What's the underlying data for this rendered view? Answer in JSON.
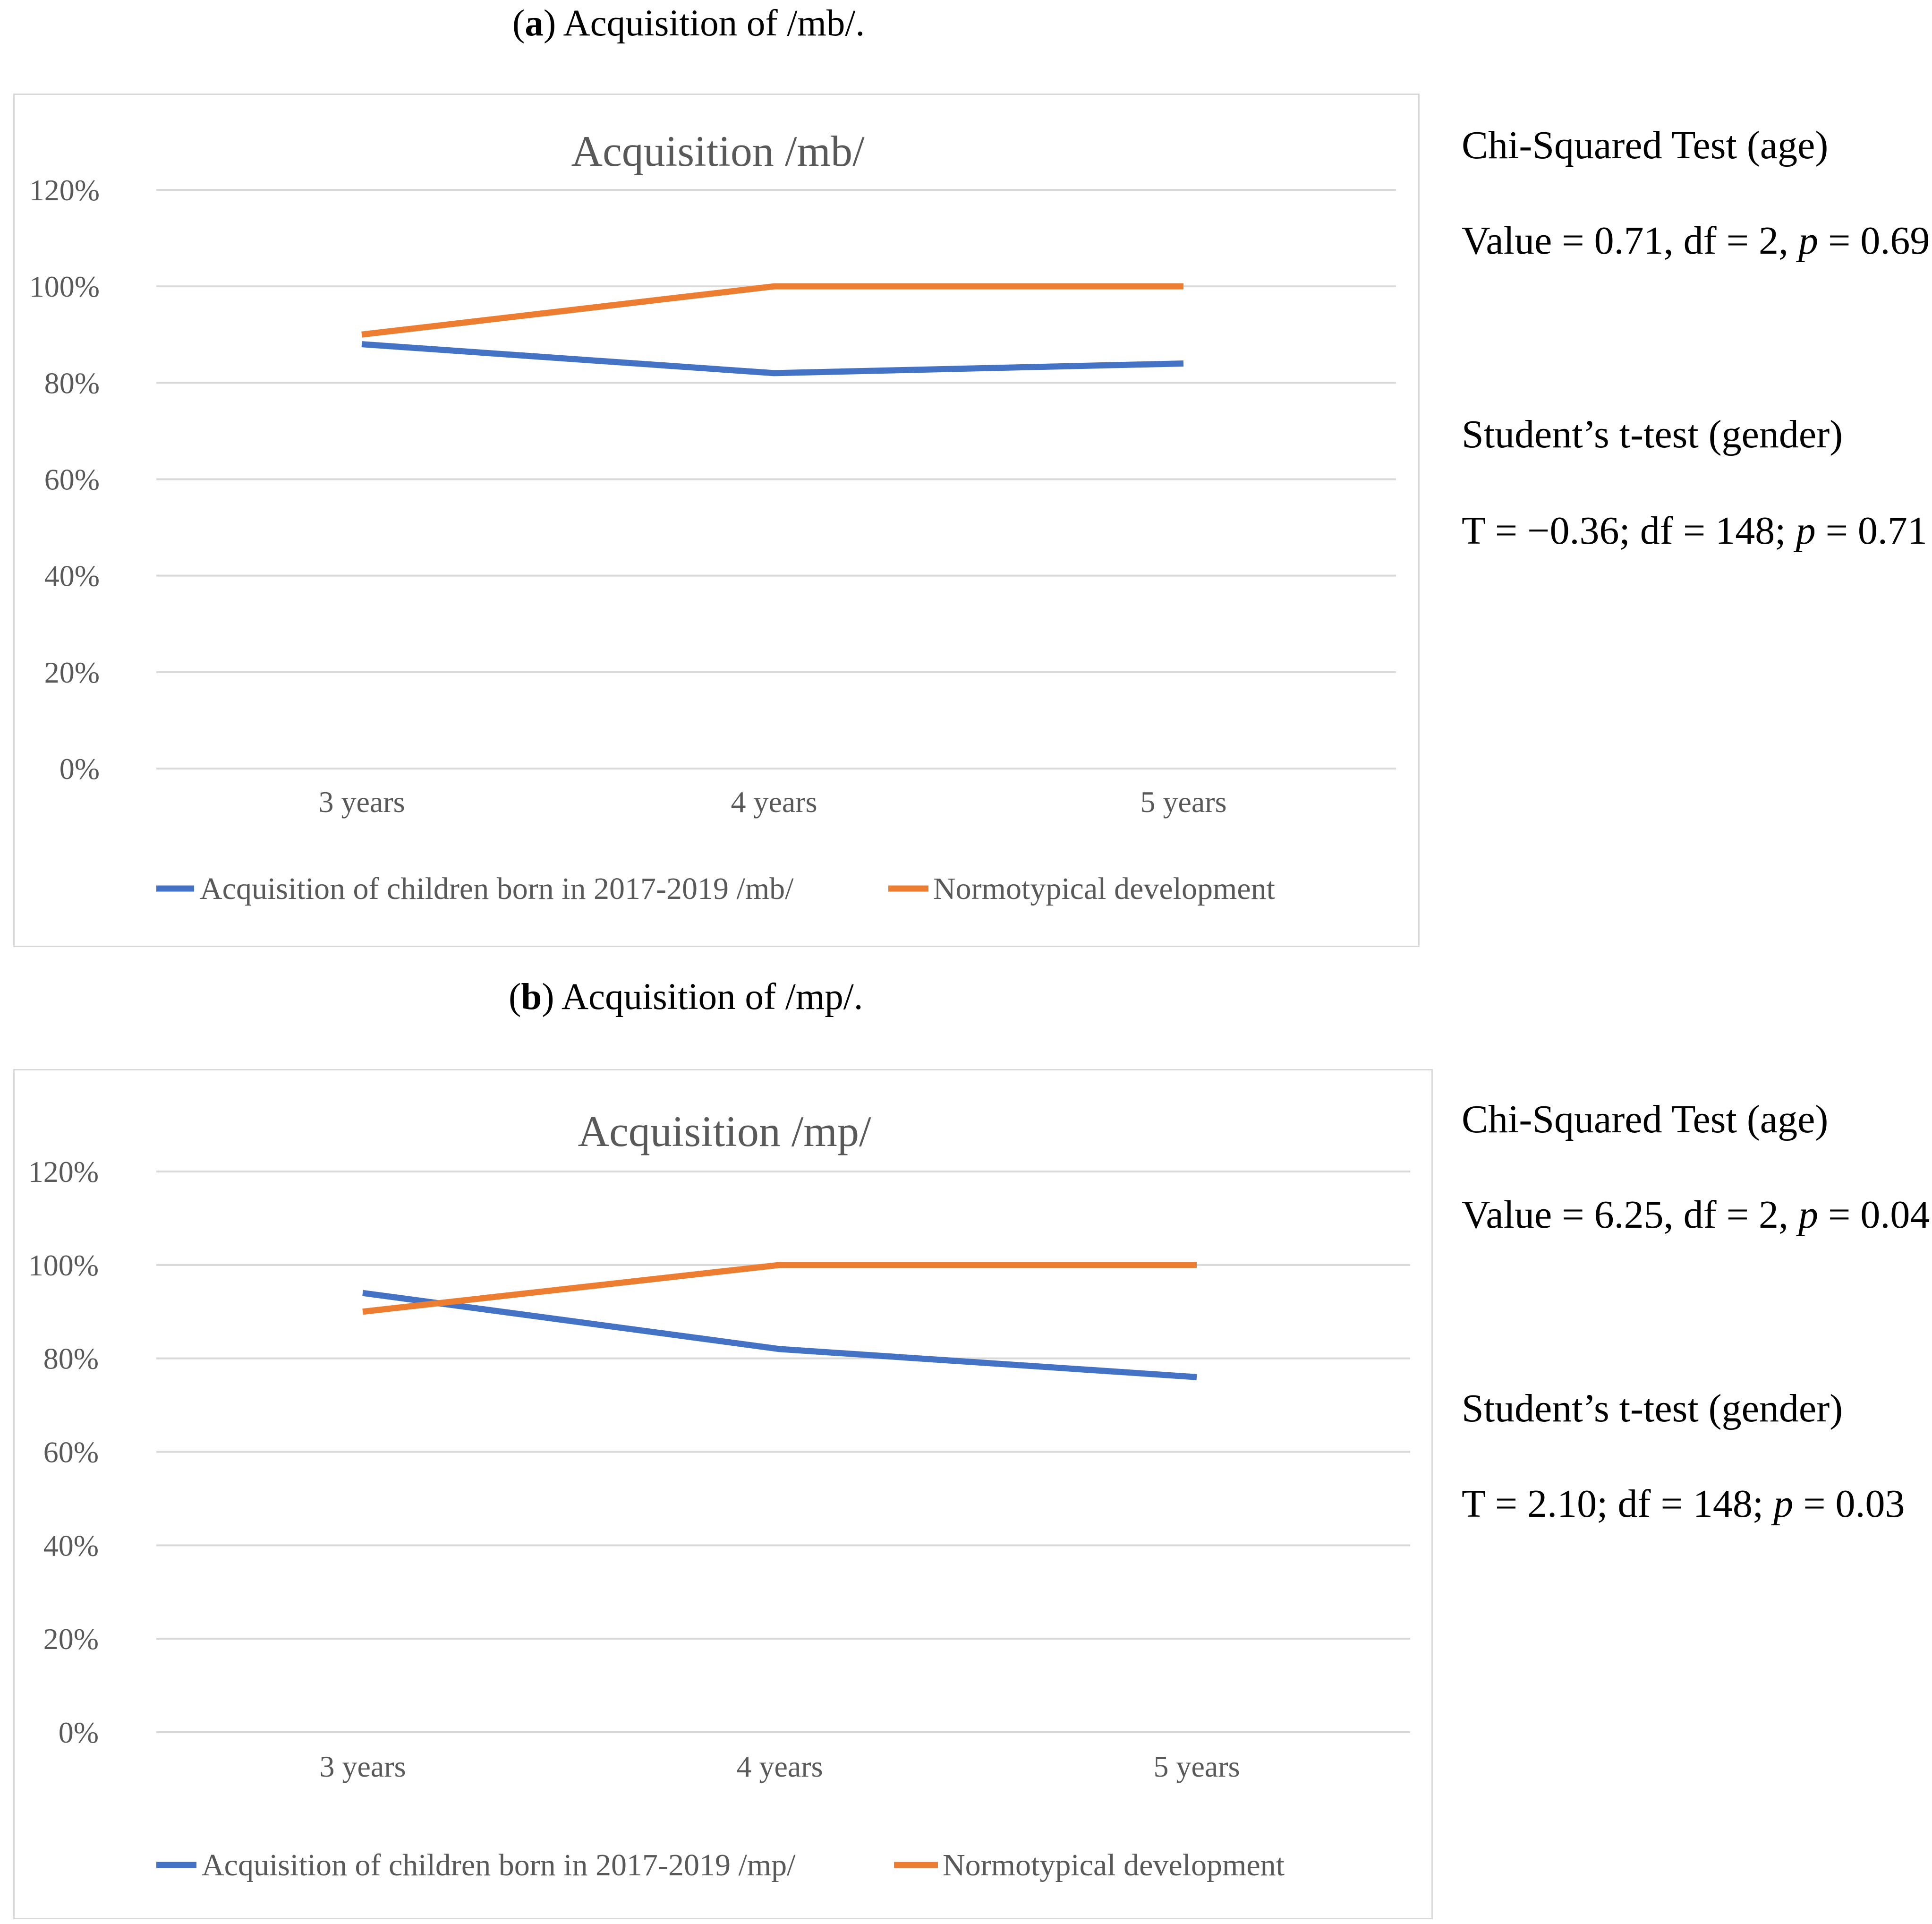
{
  "panels": [
    {
      "caption_letter": "a",
      "caption_text": ") Acquisition of /mb/.",
      "stats": {
        "chi_title": "Chi-Squared Test (age)",
        "chi_value_pre": "Value = 0.71, df = 2, ",
        "chi_p_label": "p",
        "chi_p_value": " = 0.69",
        "t_title": "Student’s t-test (gender)",
        "t_value_pre": "T = −0.36; df = 148; ",
        "t_p_label": "p",
        "t_p_value": " = 0.71"
      }
    },
    {
      "caption_letter": "b",
      "caption_text": ") Acquisition of /mp/.",
      "stats": {
        "chi_title": "Chi-Squared Test (age)",
        "chi_value_pre": "Value = 6.25, df = 2, ",
        "chi_p_label": "p",
        "chi_p_value": " = 0.04",
        "t_title": "Student’s t-test (gender)",
        "t_value_pre": "T = 2.10; df = 148; ",
        "t_p_label": "p",
        "t_p_value": " = 0.03"
      }
    }
  ],
  "chart_data": [
    {
      "type": "line",
      "title": "Acquisition /mb/",
      "categories": [
        "3 years",
        "4 years",
        "5 years"
      ],
      "yticks": [
        "0%",
        "20%",
        "40%",
        "60%",
        "80%",
        "100%",
        "120%"
      ],
      "ylim": [
        0,
        120
      ],
      "grid": true,
      "legend_position": "bottom",
      "series": [
        {
          "name": "Acquisition of children born in 2017-2019 /mb/",
          "values": [
            88,
            82,
            84
          ],
          "color": "#4472c4"
        },
        {
          "name": "Normotypical development",
          "values": [
            90,
            100,
            100
          ],
          "color": "#ed7d31"
        }
      ]
    },
    {
      "type": "line",
      "title": "Acquisition /mp/",
      "categories": [
        "3 years",
        "4 years",
        "5 years"
      ],
      "yticks": [
        "0%",
        "20%",
        "40%",
        "60%",
        "80%",
        "100%",
        "120%"
      ],
      "ylim": [
        0,
        120
      ],
      "grid": true,
      "legend_position": "bottom",
      "series": [
        {
          "name": "Acquisition of children born in 2017-2019 /mp/",
          "values": [
            94,
            82,
            76
          ],
          "color": "#4472c4"
        },
        {
          "name": "Normotypical development",
          "values": [
            90,
            100,
            100
          ],
          "color": "#ed7d31"
        }
      ]
    }
  ]
}
